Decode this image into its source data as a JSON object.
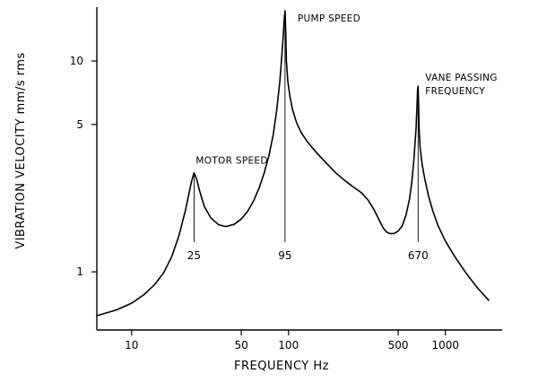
{
  "chart_data": {
    "type": "line",
    "title": "",
    "xlabel": "FREQUENCY   Hz",
    "ylabel": "VIBRATION  VELOCITY  mm/s    rms",
    "x_scale": "log",
    "y_scale": "log",
    "xlim": [
      6,
      2300
    ],
    "ylim": [
      0.53,
      18
    ],
    "x_ticks": [
      10,
      50,
      100,
      500,
      1000
    ],
    "y_ticks": [
      1,
      5,
      10
    ],
    "grid": false,
    "series": [
      {
        "x": [
          6,
          8,
          10,
          12,
          14,
          16,
          18,
          20,
          22,
          23,
          24,
          25,
          26,
          27,
          29,
          32,
          36,
          40,
          45,
          50,
          55,
          60,
          65,
          70,
          75,
          80,
          84,
          88,
          91,
          93,
          94,
          95,
          96,
          97,
          99,
          102,
          106,
          112,
          120,
          130,
          145,
          160,
          180,
          200,
          230,
          260,
          290,
          320,
          350,
          380,
          400,
          420,
          440,
          470,
          500,
          530,
          560,
          590,
          610,
          630,
          650,
          660,
          665,
          670,
          675,
          680,
          690,
          710,
          740,
          780,
          830,
          900,
          1000,
          1150,
          1350,
          1600,
          1900
        ],
        "y": [
          0.62,
          0.66,
          0.71,
          0.78,
          0.87,
          0.99,
          1.18,
          1.48,
          1.95,
          2.28,
          2.65,
          2.95,
          2.75,
          2.45,
          2.05,
          1.8,
          1.67,
          1.64,
          1.68,
          1.78,
          1.94,
          2.18,
          2.5,
          2.95,
          3.55,
          4.5,
          5.8,
          8.0,
          11.0,
          14.0,
          16.0,
          17.3,
          13.5,
          10.0,
          8.0,
          6.8,
          5.9,
          5.15,
          4.6,
          4.2,
          3.8,
          3.5,
          3.2,
          2.95,
          2.7,
          2.52,
          2.38,
          2.2,
          1.98,
          1.75,
          1.62,
          1.55,
          1.52,
          1.52,
          1.56,
          1.65,
          1.85,
          2.2,
          2.65,
          3.4,
          4.8,
          6.2,
          7.3,
          7.6,
          6.0,
          4.8,
          3.9,
          3.25,
          2.75,
          2.3,
          1.95,
          1.65,
          1.4,
          1.18,
          0.99,
          0.84,
          0.73
        ]
      }
    ],
    "annotations": [
      {
        "text": "MOTOR SPEED",
        "freq": 25,
        "freq_label": "25"
      },
      {
        "text": "PUMP SPEED",
        "freq": 95,
        "freq_label": "95"
      },
      {
        "text": "VANE PASSING",
        "text2": "FREQUENCY",
        "freq": 670,
        "freq_label": "670"
      }
    ]
  }
}
